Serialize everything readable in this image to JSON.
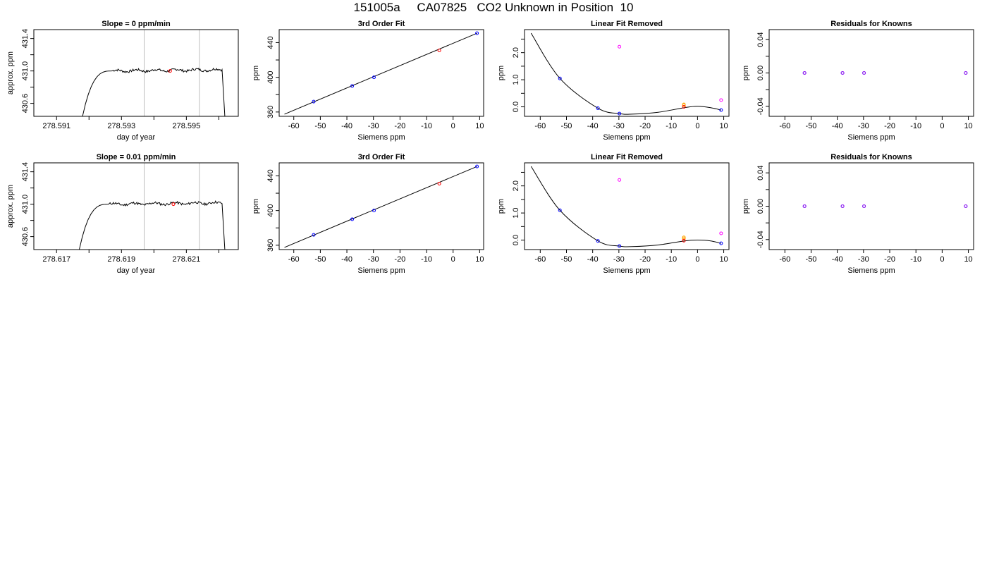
{
  "page": {
    "title": "151005a     CA07825   CO2 Unknown in Position  10"
  },
  "colors": {
    "trace": "#000000",
    "known": "#0000ff",
    "unknown": "#ff0000",
    "magenta": "#ff00ff",
    "orange": "#ffa500",
    "purple": "#a020f0",
    "vline": "#bebebe"
  },
  "chart_data": [
    {
      "type": "line",
      "title": "Slope =  0  ppm/min",
      "xlabel": "day of year",
      "ylabel": "approx. ppm",
      "xlim": [
        278.5903,
        278.5966
      ],
      "ylim": [
        430.44,
        431.51
      ],
      "xticks": [
        278.591,
        278.592,
        278.593,
        278.594,
        278.595,
        278.596
      ],
      "xtick_labels": [
        "278.591",
        "",
        "278.593",
        "",
        "278.595",
        ""
      ],
      "yticks": [
        430.6,
        430.8,
        431.0,
        431.2,
        431.4
      ],
      "ytick_labels": [
        "430.6",
        "",
        "431.0",
        "",
        "431.4"
      ],
      "vlines": [
        278.5937,
        278.5954
      ],
      "trace": {
        "start": 278.5918,
        "rise_end": 278.5927,
        "plateau_end": 278.5961,
        "end": 278.5962,
        "level": 431.0,
        "floor": 430.44,
        "start_level": 430.44,
        "knee_level": 430.85
      },
      "marker": {
        "x": 278.5945,
        "y": 431.0,
        "color": "#ff0000"
      }
    },
    {
      "type": "scatter",
      "title": "3rd Order Fit",
      "xlabel": "Siemens ppm",
      "ylabel": "ppm",
      "xlim": [
        -65.5,
        11.5
      ],
      "ylim": [
        355,
        455
      ],
      "xticks": [
        -60,
        -50,
        -40,
        -30,
        -20,
        -10,
        0,
        10
      ],
      "yticks": [
        360,
        380,
        400,
        420,
        440
      ],
      "ytick_labels": [
        "360",
        "",
        "400",
        "",
        "440"
      ],
      "fit_line": {
        "x": [
          -63.5,
          9
        ],
        "y": [
          357.5,
          450.8
        ]
      },
      "series": [
        {
          "name": "knowns",
          "color": "#0000ff",
          "x": [
            -52.5,
            -38,
            -29.8,
            9
          ],
          "y": [
            372,
            390,
            400,
            450.8
          ]
        },
        {
          "name": "unknown",
          "color": "#ff0000",
          "x": [
            -5.2
          ],
          "y": [
            431
          ]
        }
      ]
    },
    {
      "type": "scatter",
      "title": "Linear Fit Removed",
      "xlabel": "Siemens ppm",
      "ylabel": "ppm",
      "xlim": [
        -66,
        12
      ],
      "ylim": [
        -0.35,
        2.85
      ],
      "xticks": [
        -60,
        -50,
        -40,
        -30,
        -20,
        -10,
        0,
        10
      ],
      "yticks": [
        0,
        0.5,
        1.0,
        1.5,
        2.0,
        2.5
      ],
      "ytick_labels": [
        "0.0",
        "",
        "1.0",
        "",
        "2.0",
        ""
      ],
      "curve": {
        "x": [
          -63.5,
          -52.5,
          -38,
          -29.8,
          -25,
          -15,
          -5,
          0,
          5,
          9
        ],
        "y": [
          2.72,
          1.05,
          -0.05,
          -0.25,
          -0.27,
          -0.2,
          -0.03,
          0.02,
          -0.03,
          -0.12
        ]
      },
      "series": [
        {
          "name": "knowns",
          "color": "#0000ff",
          "x": [
            -52.5,
            -38,
            -29.8,
            9
          ],
          "y": [
            1.05,
            -0.05,
            -0.25,
            -0.12
          ]
        },
        {
          "name": "magenta",
          "color": "#ff00ff",
          "x": [
            -29.8,
            9
          ],
          "y": [
            2.22,
            0.25
          ]
        },
        {
          "name": "orange",
          "color": "#ffa500",
          "x": [
            -5.2,
            -5.2
          ],
          "y": [
            0.06,
            0.09
          ]
        },
        {
          "name": "unknown",
          "color": "#ff0000",
          "x": [
            -5.2
          ],
          "y": [
            0.0
          ]
        }
      ]
    },
    {
      "type": "scatter",
      "title": "Residuals for Knowns",
      "xlabel": "Siemens ppm",
      "ylabel": "ppm",
      "xlim": [
        -66,
        12
      ],
      "ylim": [
        -0.052,
        0.052
      ],
      "xticks": [
        -60,
        -50,
        -40,
        -30,
        -20,
        -10,
        0,
        10
      ],
      "yticks": [
        -0.04,
        -0.02,
        0.0,
        0.02,
        0.04
      ],
      "ytick_labels": [
        "-0.04",
        "",
        "0.00",
        "",
        "0.04"
      ],
      "series": [
        {
          "name": "knowns",
          "color": "#0000ff",
          "x": [
            -52.5,
            -38,
            -29.8,
            9
          ],
          "y": [
            0,
            0,
            0,
            0
          ]
        },
        {
          "name": "purple",
          "color": "#a020f0",
          "x": [
            -52.5,
            -38,
            -29.8,
            9
          ],
          "y": [
            0,
            0,
            0,
            0
          ]
        }
      ]
    },
    {
      "type": "line",
      "title": "Slope =  0.01  ppm/min",
      "xlabel": "day of year",
      "ylabel": "approx. ppm",
      "xlim": [
        278.6163,
        278.6226
      ],
      "ylim": [
        430.44,
        431.51
      ],
      "xticks": [
        278.617,
        278.618,
        278.619,
        278.62,
        278.621,
        278.622
      ],
      "xtick_labels": [
        "278.617",
        "",
        "278.619",
        "",
        "278.621",
        ""
      ],
      "yticks": [
        430.6,
        430.8,
        431.0,
        431.2,
        431.4
      ],
      "ytick_labels": [
        "430.6",
        "",
        "431.0",
        "",
        "431.4"
      ],
      "vlines": [
        278.6197,
        278.6214
      ],
      "trace": {
        "start": 278.6177,
        "rise_end": 278.6186,
        "plateau_end": 278.6221,
        "end": 278.6222,
        "level": 431.0,
        "floor": 430.44,
        "start_level": 430.44,
        "knee_level": 430.85
      },
      "marker": {
        "x": 278.6206,
        "y": 431.0,
        "color": "#ff0000"
      }
    },
    {
      "type": "scatter",
      "title": "3rd Order Fit",
      "xlabel": "Siemens ppm",
      "ylabel": "ppm",
      "xlim": [
        -65.5,
        11.5
      ],
      "ylim": [
        355,
        455
      ],
      "xticks": [
        -60,
        -50,
        -40,
        -30,
        -20,
        -10,
        0,
        10
      ],
      "yticks": [
        360,
        380,
        400,
        420,
        440
      ],
      "ytick_labels": [
        "360",
        "",
        "400",
        "",
        "440"
      ],
      "fit_line": {
        "x": [
          -63.5,
          9
        ],
        "y": [
          357.5,
          450.8
        ]
      },
      "series": [
        {
          "name": "knowns",
          "color": "#0000ff",
          "x": [
            -52.5,
            -38,
            -29.8,
            9
          ],
          "y": [
            372,
            390,
            400,
            450.8
          ]
        },
        {
          "name": "unknown",
          "color": "#ff0000",
          "x": [
            -5.2
          ],
          "y": [
            431
          ]
        }
      ]
    },
    {
      "type": "scatter",
      "title": "Linear Fit Removed",
      "xlabel": "Siemens ppm",
      "ylabel": "ppm",
      "xlim": [
        -66,
        12
      ],
      "ylim": [
        -0.35,
        2.85
      ],
      "xticks": [
        -60,
        -50,
        -40,
        -30,
        -20,
        -10,
        0,
        10
      ],
      "yticks": [
        0,
        0.5,
        1.0,
        1.5,
        2.0,
        2.5
      ],
      "ytick_labels": [
        "0.0",
        "",
        "1.0",
        "",
        "2.0",
        ""
      ],
      "curve": {
        "x": [
          -63.5,
          -52.5,
          -38,
          -29.8,
          -25,
          -15,
          -5,
          0,
          5,
          9
        ],
        "y": [
          2.72,
          1.1,
          -0.03,
          -0.22,
          -0.24,
          -0.18,
          -0.03,
          0.0,
          -0.03,
          -0.12
        ]
      },
      "series": [
        {
          "name": "knowns",
          "color": "#0000ff",
          "x": [
            -52.5,
            -38,
            -29.8,
            9
          ],
          "y": [
            1.1,
            -0.03,
            -0.22,
            -0.12
          ]
        },
        {
          "name": "magenta",
          "color": "#ff00ff",
          "x": [
            -29.8,
            9
          ],
          "y": [
            2.22,
            0.25
          ]
        },
        {
          "name": "orange",
          "color": "#ffa500",
          "x": [
            -5.2,
            -5.2
          ],
          "y": [
            0.06,
            0.1
          ]
        },
        {
          "name": "unknown",
          "color": "#ff0000",
          "x": [
            -5.2
          ],
          "y": [
            -0.02
          ]
        }
      ]
    },
    {
      "type": "scatter",
      "title": "Residuals for Knowns",
      "xlabel": "Siemens ppm",
      "ylabel": "ppm",
      "xlim": [
        -66,
        12
      ],
      "ylim": [
        -0.052,
        0.052
      ],
      "xticks": [
        -60,
        -50,
        -40,
        -30,
        -20,
        -10,
        0,
        10
      ],
      "yticks": [
        -0.04,
        -0.02,
        0.0,
        0.02,
        0.04
      ],
      "ytick_labels": [
        "-0.04",
        "",
        "0.00",
        "",
        "0.04"
      ],
      "series": [
        {
          "name": "knowns",
          "color": "#0000ff",
          "x": [
            -52.5,
            -38,
            -29.8,
            9
          ],
          "y": [
            0,
            0,
            0,
            0
          ]
        },
        {
          "name": "purple",
          "color": "#a020f0",
          "x": [
            -52.5,
            -38,
            -29.8,
            9
          ],
          "y": [
            0,
            0,
            0,
            0
          ]
        }
      ]
    }
  ]
}
